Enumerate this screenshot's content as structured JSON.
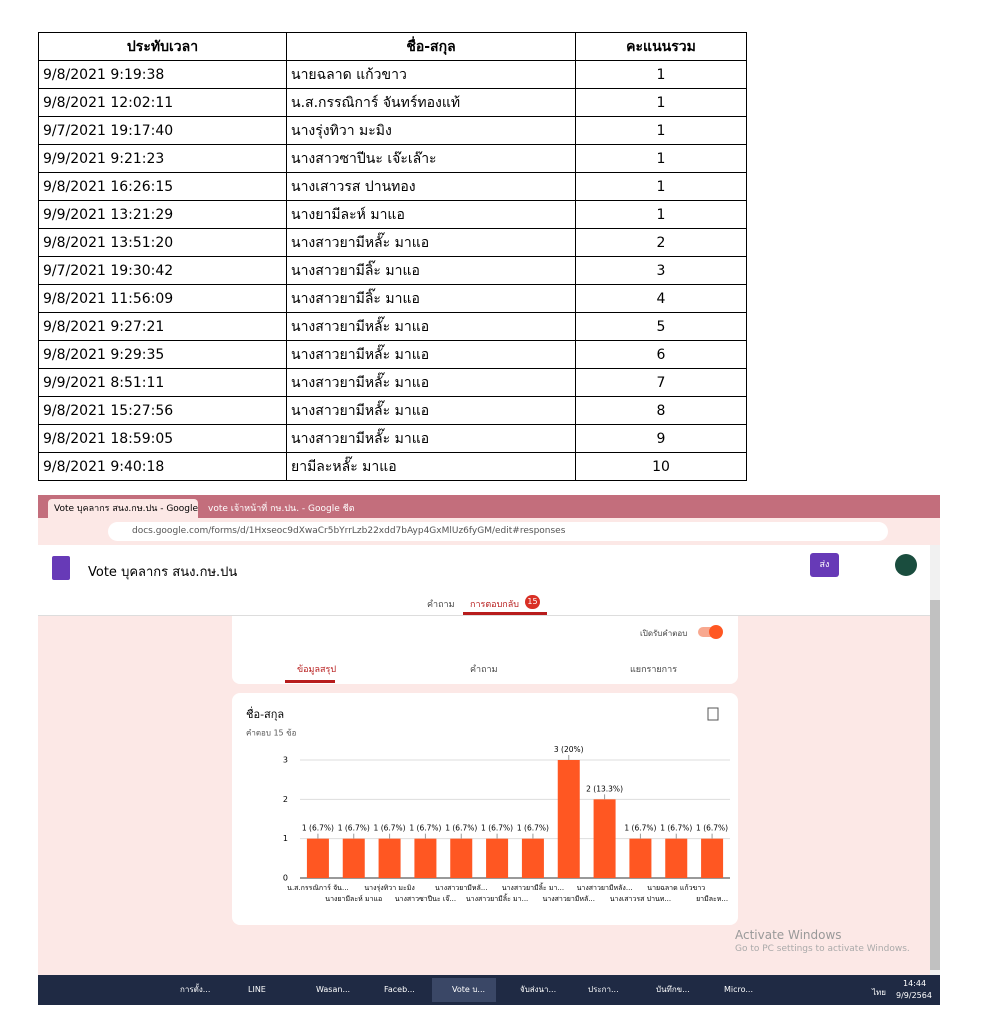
{
  "table": {
    "header": [
      "ประทับเวลา",
      "ชื่อ-สกุล",
      "คะแนนรวม"
    ],
    "rows": [
      [
        "9/8/2021 9:19:38",
        "นายฉลาด แก้วขาว",
        1
      ],
      [
        "9/8/2021 12:02:11",
        "น.ส.กรรณิการ์  จันทร์ทองแท้",
        1
      ],
      [
        "9/7/2021 19:17:40",
        "นางรุ่งทิวา   มะมิง",
        1
      ],
      [
        "9/9/2021 9:21:23",
        "นางสาวซาปีนะ เจ๊ะเล๊าะ",
        1
      ],
      [
        "9/8/2021 16:26:15",
        "นางเสาวรส  ปานทอง",
        1
      ],
      [
        "9/9/2021 13:21:29",
        "นางยามีละห์  มาแอ",
        1
      ],
      [
        "9/8/2021 13:51:20",
        "นางสาวยามีหลั๊ะ  มาแอ",
        2
      ],
      [
        "9/7/2021 19:30:42",
        "นางสาวยามีลิ๊ะ  มาแอ",
        3
      ],
      [
        "9/8/2021 11:56:09",
        "นางสาวยามีลิ๊ะ มาแอ",
        4
      ],
      [
        "9/8/2021 9:27:21",
        "นางสาวยามีหลั๊ะ  มาแอ",
        5
      ],
      [
        "9/8/2021 9:29:35",
        "นางสาวยามีหลั๊ะ  มาแอ",
        6
      ],
      [
        "9/9/2021 8:51:11",
        "นางสาวยามีหลั๊ะ  มาแอ",
        7
      ],
      [
        "9/8/2021 15:27:56",
        "นางสาวยามีหลั๊ะ มาแอ",
        8
      ],
      [
        "9/8/2021 18:59:05",
        "นางสาวยามีหลั๊ะ มาแอ",
        9
      ],
      [
        "9/8/2021 9:40:18",
        "ยามีละหลั๊ะ มาแอ",
        10
      ]
    ]
  },
  "browser": {
    "tabs": [
      "Vote บุคลากร สนง.กษ.ปน - Google",
      "vote เจ้าหน้าที่ กษ.ปน. - Google ชีต"
    ],
    "url": "docs.google.com/forms/d/1Hxseoc9dXwaCr5bYrrLzb22xdd7bAyp4GxMlUz6fyGM/edit#responses"
  },
  "form": {
    "title": "Vote บุคลากร สนง.กษ.ปน",
    "send": "ส่ง",
    "tabs": [
      "คำถาม",
      "การตอบกลับ"
    ],
    "response_count": 15,
    "accepting": "เปิดรับคำตอบ",
    "subtabs": [
      "ข้อมูลสรุป",
      "คำถาม",
      "แยกรายการ"
    ]
  },
  "chart_data": {
    "type": "bar",
    "title": "ชื่อ-สกุล",
    "subtitle": "คำตอบ 15 ข้อ",
    "color": "#ff5722",
    "grid": true,
    "categories": [
      "น.ส.กรรณิการ์ จัน...",
      "นางยามีละห์ มาแอ",
      "นางรุ่งทิวา มะมิง",
      "นางสาวซาปีนะ เจ๊...",
      "นางสาวยามีหลั...",
      "นางสาวยามีลิ้ะ มา...",
      "นางสาวยามีลิ้ะ มา...",
      "นางสาวยามีหลั...",
      "นางสาวยามีหลัง...",
      "นางเสาวรส ปานท...",
      "นายฉลาด แก้วขาว",
      "ยามีละห..."
    ],
    "values": [
      1,
      1,
      1,
      1,
      1,
      1,
      1,
      3,
      2,
      1,
      1,
      1
    ],
    "value_labels": [
      "1 (6.7%)",
      "1 (6.7%)",
      "1 (6.7%)",
      "1 (6.7%)",
      "1 (6.7%)",
      "1 (6.7%)",
      "1 (6.7%)",
      "3 (20%)",
      "2 (13.3%)",
      "1 (6.7%)",
      "1 (6.7%)",
      "1 (6.7%)"
    ],
    "ylim": [
      0,
      3
    ],
    "yticks": [
      0,
      1,
      2,
      3
    ]
  },
  "watermark": [
    "Activate Windows",
    "Go to PC settings to activate Windows."
  ],
  "taskbar": {
    "apps": [
      "การตั้ง...",
      "LINE",
      "Wasan...",
      "Faceb...",
      "Vote บ...",
      "จับส่งนา...",
      "ประกา...",
      "บันทึกข...",
      "Micro..."
    ],
    "lang": "ไทย",
    "time": "14:44",
    "date": "9/9/2564"
  }
}
